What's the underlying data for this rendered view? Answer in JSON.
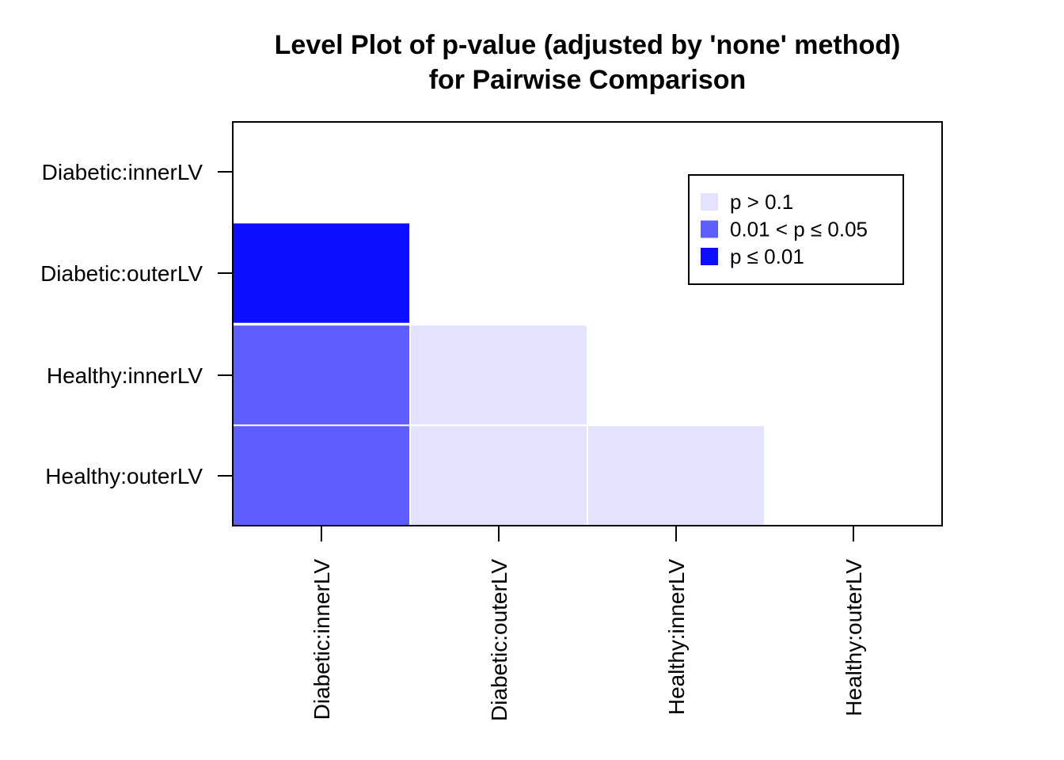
{
  "chart_data": {
    "type": "heatmap",
    "title": "Level Plot of p-value (adjusted by 'none' method)",
    "subtitle": "for Pairwise Comparison",
    "x_categories": [
      "Diabetic:innerLV",
      "Diabetic:outerLV",
      "Healthy:innerLV",
      "Healthy:outerLV"
    ],
    "y_categories": [
      "Diabetic:innerLV",
      "Diabetic:outerLV",
      "Healthy:innerLV",
      "Healthy:outerLV"
    ],
    "cells": [
      {
        "x": "Diabetic:innerLV",
        "y": "Diabetic:outerLV",
        "level": "p ≤ 0.01"
      },
      {
        "x": "Diabetic:innerLV",
        "y": "Healthy:innerLV",
        "level": "0.01 < p  ≤ 0.05"
      },
      {
        "x": "Diabetic:innerLV",
        "y": "Healthy:outerLV",
        "level": "0.01 < p  ≤ 0.05"
      },
      {
        "x": "Diabetic:outerLV",
        "y": "Healthy:innerLV",
        "level": "p > 0.1"
      },
      {
        "x": "Diabetic:outerLV",
        "y": "Healthy:outerLV",
        "level": "p > 0.1"
      },
      {
        "x": "Healthy:innerLV",
        "y": "Healthy:outerLV",
        "level": "p > 0.1"
      }
    ],
    "legend": {
      "position": "top-right",
      "entries": [
        {
          "label": "p > 0.1",
          "color": "#e3e3ff"
        },
        {
          "label": "0.01 < p  ≤ 0.05",
          "color": "#5e5eff"
        },
        {
          "label": "p ≤ 0.01",
          "color": "#0d0dff"
        }
      ]
    },
    "grid": false
  }
}
